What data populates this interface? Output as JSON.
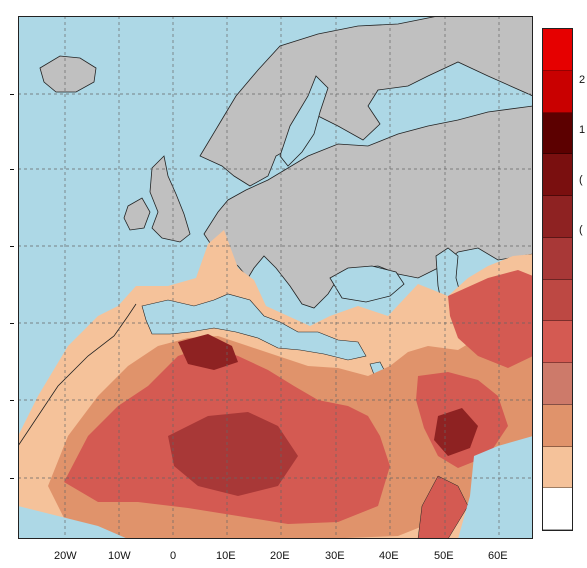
{
  "map": {
    "ocean_color": "#add8e6",
    "land_color": "#c0c0c0",
    "dust_levels_colors": [
      "#f5c29a",
      "#e0936b",
      "#cd7a6a",
      "#d45a52",
      "#bd4843",
      "#a83837",
      "#8e2222",
      "#7a0f0f",
      "#5c0000",
      "#c90000",
      "#e60000"
    ],
    "lon_labels": [
      "20W",
      "10W",
      "0",
      "10E",
      "20E",
      "30E",
      "40E",
      "50E",
      "60E"
    ]
  },
  "legend": {
    "colors": [
      "#e60000",
      "#c90000",
      "#5c0000",
      "#7a0f0f",
      "#8e2222",
      "#a83837",
      "#bd4843",
      "#d45a52",
      "#cd7a6a",
      "#e0936b",
      "#f5c29a",
      "#ffffff"
    ],
    "labels": [
      "2",
      "1",
      "(",
      "("
    ]
  }
}
